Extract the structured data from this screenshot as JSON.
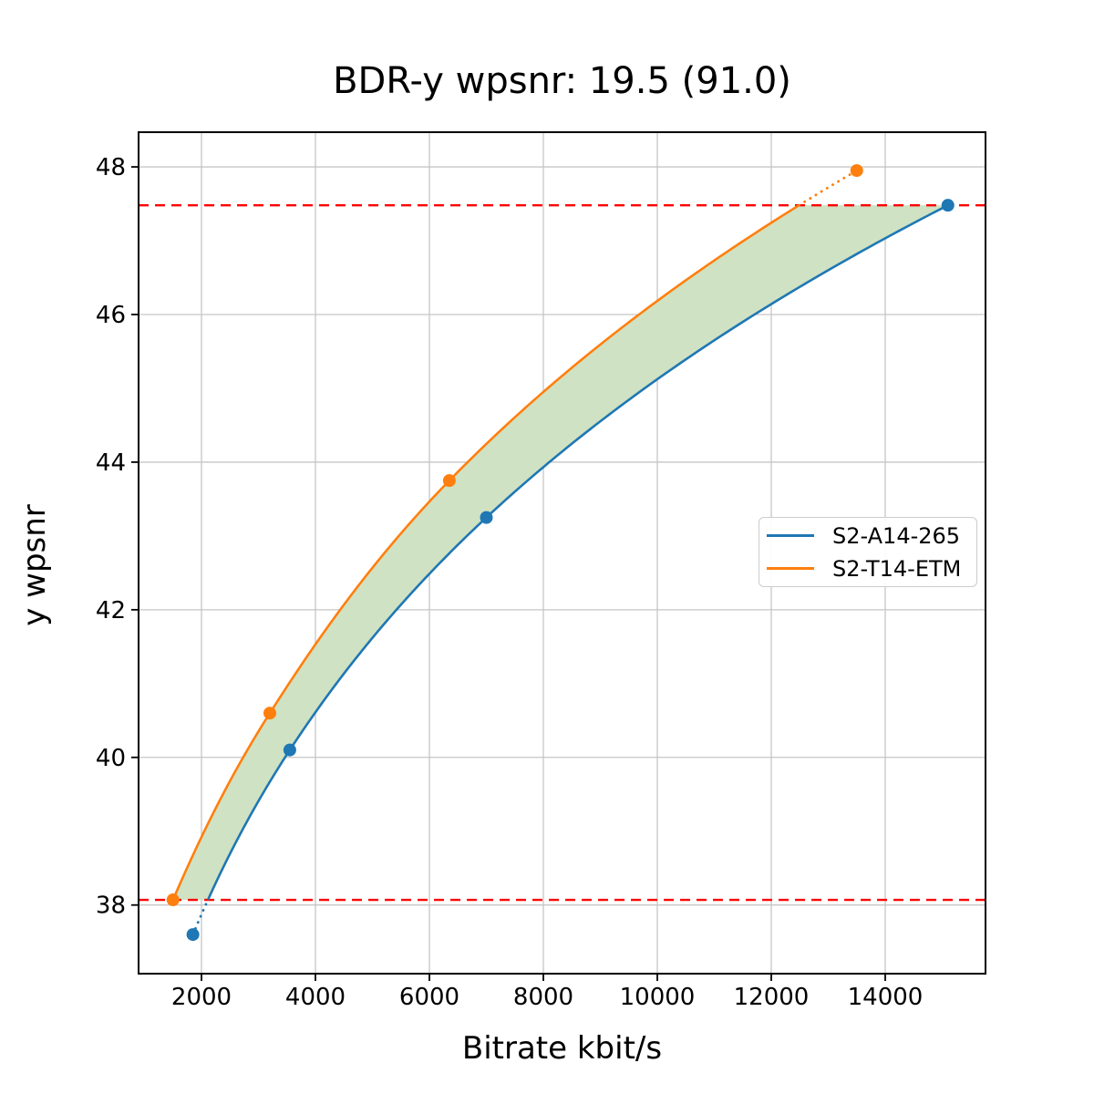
{
  "chart_data": {
    "type": "line",
    "title": "BDR-y wpsnr: 19.5 (91.0)",
    "xlabel": "Bitrate kbit/s",
    "ylabel": "y wpsnr",
    "xlim": [
      896,
      15760
    ],
    "ylim": [
      37.07,
      48.47
    ],
    "xticks": [
      2000,
      4000,
      6000,
      8000,
      10000,
      12000,
      14000
    ],
    "yticks": [
      38,
      40,
      42,
      44,
      46,
      48
    ],
    "grid": true,
    "grid_color": "#c6c6c6",
    "background": "#ffffff",
    "interpolation": "pchip-log-x",
    "series": [
      {
        "name": "S2-A14-265",
        "color": "#1f77b4",
        "marker": "circle",
        "x": [
          1850,
          3550,
          7000,
          15100
        ],
        "y": [
          37.6,
          40.1,
          43.25,
          47.48
        ]
      },
      {
        "name": "S2-T14-ETM",
        "color": "#ff7f0e",
        "marker": "circle",
        "x": [
          1500,
          3200,
          6350,
          13500
        ],
        "y": [
          38.07,
          40.6,
          43.75,
          47.95
        ]
      }
    ],
    "overlap_bounds": {
      "lower": 38.07,
      "upper": 47.48,
      "line_color": "#ff0000",
      "line_style": "dashed"
    },
    "shaded_region": {
      "between": [
        "S2-T14-ETM",
        "S2-A14-265"
      ],
      "color": "#cfe2c3"
    },
    "legend_position": "center-right"
  }
}
